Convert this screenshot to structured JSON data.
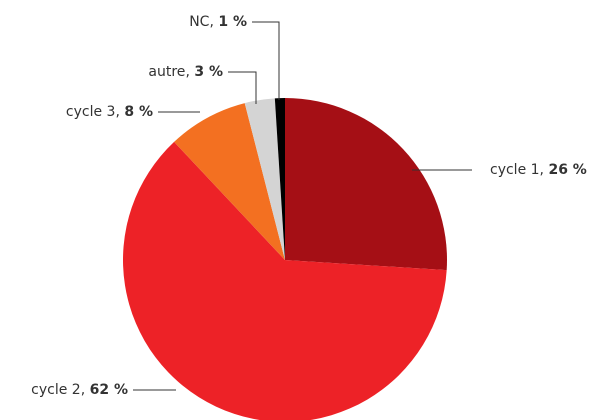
{
  "chart_data": {
    "type": "pie",
    "categories": [
      "cycle 1",
      "cycle 2",
      "cycle 3",
      "autre",
      "NC"
    ],
    "values": [
      26,
      62,
      8,
      3,
      1
    ],
    "value_labels": [
      "26 %",
      "62 %",
      "8 %",
      "3 %",
      "1 %"
    ],
    "label_separator": ", ",
    "colors": [
      "#a50f15",
      "#ed2227",
      "#f37021",
      "#d4d4d4",
      "#000000"
    ]
  }
}
